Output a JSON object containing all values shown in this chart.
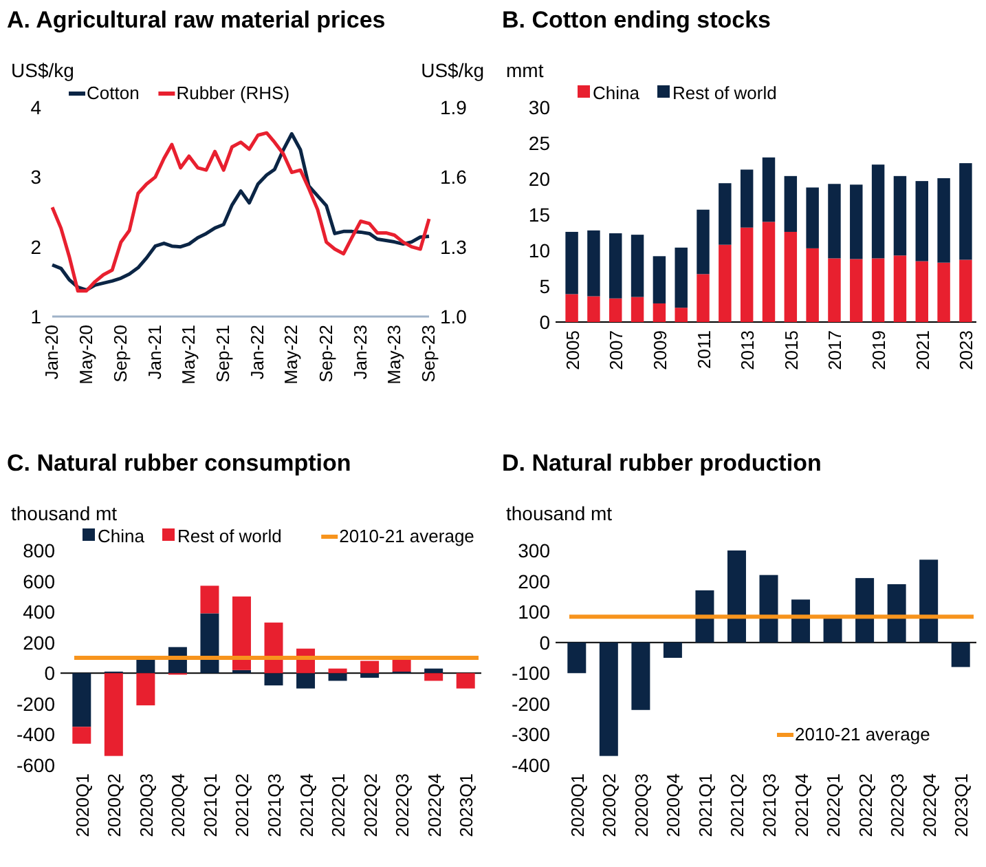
{
  "chart_data": [
    {
      "type": "line",
      "title": "A. Agricultural raw material prices",
      "ylabel": "US$/kg",
      "y2label": "US$/kg",
      "legend": "top",
      "x": [
        "2020-01",
        "2020-02",
        "2020-03",
        "2020-04",
        "2020-05",
        "2020-06",
        "2020-07",
        "2020-08",
        "2020-09",
        "2020-10",
        "2020-11",
        "2020-12",
        "2021-01",
        "2021-02",
        "2021-03",
        "2021-04",
        "2021-05",
        "2021-06",
        "2021-07",
        "2021-08",
        "2021-09",
        "2021-10",
        "2021-11",
        "2021-12",
        "2022-01",
        "2022-02",
        "2022-03",
        "2022-04",
        "2022-05",
        "2022-06",
        "2022-07",
        "2022-08",
        "2022-09",
        "2022-10",
        "2022-11",
        "2022-12",
        "2023-01",
        "2023-02",
        "2023-03",
        "2023-04",
        "2023-05",
        "2023-06",
        "2023-07",
        "2023-08",
        "2023-09"
      ],
      "xlim": [
        "2020-01",
        "2023-09"
      ],
      "xticks": [
        {
          "value": "2020-01",
          "label": "Jan-20"
        },
        {
          "value": "2020-05",
          "label": "May-20"
        },
        {
          "value": "2020-09",
          "label": "Sep-20"
        },
        {
          "value": "2021-01",
          "label": "Jan-21"
        },
        {
          "value": "2021-05",
          "label": "May-21"
        },
        {
          "value": "2021-09",
          "label": "Sep-21"
        },
        {
          "value": "2022-01",
          "label": "Jan-22"
        },
        {
          "value": "2022-05",
          "label": "May-22"
        },
        {
          "value": "2022-09",
          "label": "Sep-22"
        },
        {
          "value": "2023-01",
          "label": "Jan-23"
        },
        {
          "value": "2023-05",
          "label": "May-23"
        },
        {
          "value": "2023-09",
          "label": "Sep-23"
        }
      ],
      "ylim": [
        1,
        4
      ],
      "yticks": [
        1,
        2,
        3,
        4
      ],
      "y2lim": [
        1.0,
        1.9
      ],
      "y2ticks": [
        {
          "value": 1.0,
          "label": "1.0"
        },
        {
          "value": 1.3,
          "label": "1.3"
        },
        {
          "value": 1.6,
          "label": "1.6"
        },
        {
          "value": 1.9,
          "label": "1.9"
        }
      ],
      "series": [
        {
          "name": "Cotton",
          "color": "#0b2545",
          "values": [
            1.74,
            1.69,
            1.53,
            1.42,
            1.38,
            1.45,
            1.48,
            1.51,
            1.55,
            1.61,
            1.7,
            1.84,
            2.01,
            2.05,
            2.01,
            2.0,
            2.04,
            2.13,
            2.19,
            2.27,
            2.32,
            2.6,
            2.8,
            2.63,
            2.9,
            3.03,
            3.11,
            3.39,
            3.62,
            3.39,
            2.87,
            2.73,
            2.59,
            2.19,
            2.22,
            2.22,
            2.21,
            2.19,
            2.11,
            2.09,
            2.07,
            2.04,
            2.07,
            2.14,
            2.15
          ]
        },
        {
          "name": "Rubber (RHS)",
          "color": "#e8202f",
          "axis": "y2",
          "values": [
            1.47,
            1.38,
            1.26,
            1.11,
            1.11,
            1.15,
            1.18,
            1.2,
            1.32,
            1.37,
            1.53,
            1.57,
            1.6,
            1.68,
            1.74,
            1.64,
            1.69,
            1.64,
            1.63,
            1.71,
            1.63,
            1.73,
            1.75,
            1.72,
            1.78,
            1.79,
            1.75,
            1.7,
            1.62,
            1.63,
            1.55,
            1.46,
            1.32,
            1.29,
            1.27,
            1.34,
            1.41,
            1.4,
            1.36,
            1.36,
            1.35,
            1.32,
            1.3,
            1.29,
            1.42
          ]
        }
      ]
    },
    {
      "type": "bar",
      "title": "B. Cotton ending stocks",
      "ylabel": "mmt",
      "stacked": true,
      "legend": "top",
      "categories": [
        "2005",
        null,
        "2007",
        null,
        "2009",
        null,
        "2011",
        null,
        "2013",
        null,
        "2015",
        null,
        "2017",
        null,
        "2019",
        null,
        "2021",
        null,
        "2023"
      ],
      "ylim": [
        0,
        30
      ],
      "yticks": [
        0,
        5,
        10,
        15,
        20,
        25,
        30
      ],
      "series": [
        {
          "name": "China",
          "color": "#e8202f",
          "values": [
            3.9,
            3.6,
            3.3,
            3.5,
            2.6,
            2.0,
            6.7,
            10.8,
            13.2,
            14.0,
            12.6,
            10.3,
            8.9,
            8.8,
            8.9,
            9.3,
            8.5,
            8.3,
            8.7
          ]
        },
        {
          "name": "Rest of world",
          "color": "#0b2545",
          "values": [
            8.7,
            9.2,
            9.1,
            8.7,
            6.6,
            8.4,
            9.0,
            8.6,
            8.1,
            9.0,
            7.8,
            8.5,
            10.4,
            10.4,
            13.1,
            11.1,
            11.2,
            11.8,
            13.5
          ]
        }
      ]
    },
    {
      "type": "bar",
      "title": "C. Natural rubber consumption",
      "ylabel": "thousand mt",
      "stacked": true,
      "legend": "top",
      "categories": [
        "2020Q1",
        "2020Q2",
        "2020Q3",
        "2020Q4",
        "2021Q1",
        "2021Q2",
        "2021Q3",
        "2021Q4",
        "2022Q1",
        "2022Q2",
        "2022Q3",
        "2022Q4",
        "2023Q1"
      ],
      "ylim": [
        -600,
        800
      ],
      "yticks": [
        -600,
        -400,
        -200,
        0,
        200,
        400,
        600,
        800
      ],
      "series": [
        {
          "name": "China",
          "color": "#0b2545",
          "values": [
            -350,
            10,
            90,
            170,
            390,
            20,
            -80,
            -100,
            -50,
            -30,
            10,
            30,
            0
          ]
        },
        {
          "name": "Rest of world",
          "color": "#e8202f",
          "values": [
            -110,
            -540,
            -210,
            -10,
            180,
            480,
            330,
            160,
            30,
            80,
            100,
            -50,
            -100
          ]
        }
      ],
      "ref_lines": [
        {
          "axis": "y",
          "value": 100,
          "label": "2010-21 average",
          "color": "#f7941d"
        }
      ]
    },
    {
      "type": "bar",
      "title": "D. Natural rubber production",
      "ylabel": "thousand mt",
      "legend": "bottom right",
      "categories": [
        "2020Q1",
        "2020Q2",
        "2020Q3",
        "2020Q4",
        "2021Q1",
        "2021Q2",
        "2021Q3",
        "2021Q4",
        "2022Q1",
        "2022Q2",
        "2022Q3",
        "2022Q4",
        "2023Q1"
      ],
      "ylim": [
        -400,
        300
      ],
      "yticks": [
        -400,
        -300,
        -200,
        -100,
        0,
        100,
        200,
        300
      ],
      "series": [
        {
          "color": "#0b2545",
          "values": [
            -100,
            -370,
            -220,
            -50,
            170,
            300,
            220,
            140,
            80,
            210,
            190,
            270,
            -80
          ]
        }
      ],
      "ref_lines": [
        {
          "axis": "y",
          "value": 84,
          "label": "2010-21 average",
          "color": "#f7941d"
        }
      ]
    }
  ]
}
